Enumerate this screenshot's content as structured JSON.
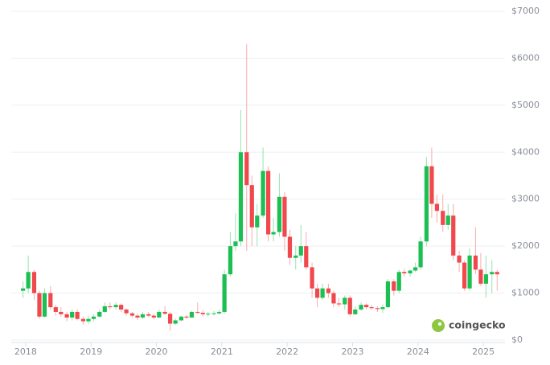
{
  "chart_data": {
    "type": "candlestick",
    "x": [
      2017.96,
      2018.04,
      2018.13,
      2018.21,
      2018.29,
      2018.38,
      2018.46,
      2018.54,
      2018.63,
      2018.71,
      2018.79,
      2018.88,
      2018.96,
      2019.04,
      2019.13,
      2019.21,
      2019.29,
      2019.38,
      2019.46,
      2019.54,
      2019.63,
      2019.71,
      2019.79,
      2019.88,
      2019.96,
      2020.04,
      2020.13,
      2020.21,
      2020.29,
      2020.38,
      2020.46,
      2020.54,
      2020.63,
      2020.71,
      2020.79,
      2020.88,
      2020.96,
      2021.04,
      2021.13,
      2021.21,
      2021.29,
      2021.38,
      2021.46,
      2021.54,
      2021.63,
      2021.71,
      2021.79,
      2021.88,
      2021.96,
      2022.04,
      2022.13,
      2022.21,
      2022.29,
      2022.38,
      2022.46,
      2022.54,
      2022.63,
      2022.71,
      2022.79,
      2022.88,
      2022.96,
      2023.04,
      2023.13,
      2023.21,
      2023.29,
      2023.38,
      2023.46,
      2023.54,
      2023.63,
      2023.71,
      2023.79,
      2023.88,
      2023.96,
      2024.04,
      2024.13,
      2024.21,
      2024.29,
      2024.38,
      2024.46,
      2024.54,
      2024.63,
      2024.71,
      2024.79,
      2024.88,
      2024.96,
      2025.04,
      2025.13,
      2025.21
    ],
    "open": [
      1050,
      1100,
      1450,
      1000,
      500,
      1000,
      700,
      600,
      550,
      480,
      600,
      450,
      400,
      450,
      500,
      600,
      720,
      700,
      750,
      650,
      570,
      520,
      480,
      550,
      520,
      480,
      600,
      560,
      350,
      420,
      500,
      480,
      600,
      580,
      550,
      560,
      570,
      600,
      1400,
      2000,
      2100,
      4000,
      3300,
      2400,
      2650,
      3600,
      2250,
      2300,
      3050,
      2200,
      1750,
      1800,
      2000,
      1550,
      1100,
      900,
      1100,
      1000,
      780,
      760,
      900,
      550,
      650,
      750,
      700,
      680,
      660,
      700,
      1250,
      1050,
      1450,
      1420,
      1480,
      1550,
      2100,
      3700,
      2900,
      2750,
      2450,
      2650,
      1800,
      1650,
      1100,
      1800,
      1500,
      1200,
      1400,
      1450
    ],
    "high": [
      1250,
      1800,
      1500,
      1050,
      1100,
      1150,
      750,
      700,
      600,
      650,
      650,
      500,
      520,
      550,
      650,
      800,
      800,
      800,
      780,
      680,
      600,
      560,
      600,
      600,
      560,
      650,
      720,
      600,
      460,
      520,
      540,
      620,
      800,
      640,
      600,
      620,
      650,
      1500,
      2300,
      2700,
      4900,
      6300,
      3500,
      2900,
      4100,
      3700,
      2600,
      3550,
      3150,
      2350,
      2000,
      2450,
      2300,
      1650,
      1200,
      1200,
      1200,
      1050,
      900,
      950,
      950,
      720,
      800,
      780,
      750,
      720,
      760,
      1300,
      1300,
      1500,
      1520,
      1500,
      1650,
      2200,
      3900,
      4100,
      3100,
      3100,
      2900,
      2900,
      1900,
      1700,
      1950,
      2400,
      1850,
      1800,
      1700,
      1500
    ],
    "low": [
      900,
      1000,
      850,
      450,
      480,
      650,
      520,
      500,
      400,
      420,
      420,
      330,
      350,
      400,
      480,
      580,
      650,
      650,
      600,
      520,
      480,
      430,
      450,
      480,
      440,
      470,
      540,
      200,
      320,
      400,
      450,
      470,
      560,
      500,
      500,
      520,
      540,
      560,
      1350,
      1900,
      2000,
      1900,
      2000,
      2000,
      2600,
      2100,
      2100,
      2200,
      1900,
      1600,
      1500,
      1650,
      1500,
      900,
      700,
      850,
      900,
      700,
      700,
      650,
      500,
      530,
      620,
      650,
      640,
      600,
      580,
      680,
      950,
      1000,
      1350,
      1350,
      1450,
      1500,
      2000,
      2600,
      2500,
      2300,
      2350,
      1700,
      1450,
      1050,
      1050,
      1400,
      1150,
      900,
      1000,
      1050
    ],
    "close": [
      1100,
      1450,
      1000,
      500,
      1000,
      700,
      600,
      550,
      480,
      600,
      450,
      400,
      450,
      500,
      600,
      720,
      700,
      750,
      650,
      570,
      520,
      480,
      550,
      520,
      480,
      600,
      560,
      350,
      420,
      500,
      480,
      600,
      580,
      550,
      560,
      570,
      600,
      1400,
      2000,
      2100,
      4000,
      3300,
      2400,
      2650,
      3600,
      2250,
      2300,
      3050,
      2200,
      1750,
      1800,
      2000,
      1550,
      1100,
      900,
      1100,
      1000,
      780,
      760,
      900,
      550,
      650,
      750,
      700,
      680,
      660,
      700,
      1250,
      1050,
      1450,
      1420,
      1480,
      1550,
      2100,
      3700,
      2900,
      2750,
      2450,
      2650,
      1800,
      1650,
      1100,
      1800,
      1500,
      1200,
      1400,
      1450,
      1400
    ],
    "up_color": "#1bbf52",
    "down_color": "#f0484c",
    "xlim": [
      2017.78,
      2025.33
    ],
    "xticks": [
      2018,
      2019,
      2020,
      2021,
      2022,
      2023,
      2024,
      2025
    ],
    "ylim": [
      0,
      7000
    ],
    "yticks": [
      {
        "value": 0,
        "label": "$0"
      },
      {
        "value": 1000,
        "label": "$1000"
      },
      {
        "value": 2000,
        "label": "$2000"
      },
      {
        "value": 3000,
        "label": "$3000"
      },
      {
        "value": 4000,
        "label": "$4000"
      },
      {
        "value": 5000,
        "label": "$5000"
      },
      {
        "value": 6000,
        "label": "$6000"
      },
      {
        "value": 7000,
        "label": "$7000"
      }
    ],
    "grid": true,
    "watermark": "coingecko"
  }
}
